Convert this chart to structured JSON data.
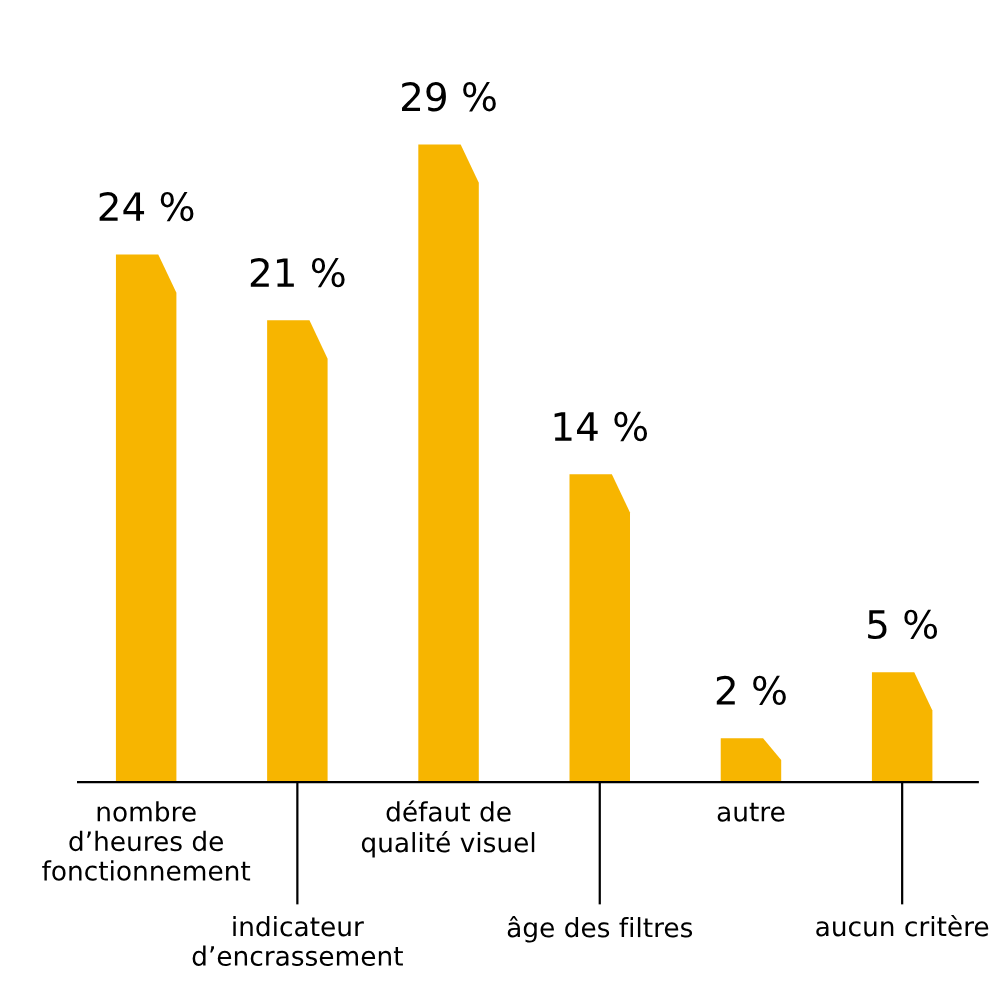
{
  "chart_data": {
    "type": "bar",
    "categories": [
      "nombre\nd’heures de\nfonctionnement",
      "indicateur\nd’encrassement",
      "défaut de\nqualité visuel",
      "âge des filtres",
      "autre",
      "aucun critère"
    ],
    "values": [
      24,
      21,
      29,
      14,
      2,
      5
    ],
    "value_labels": [
      "24 %",
      "21 %",
      "29 %",
      "14 %",
      "2 %",
      "5 %"
    ],
    "color": "#f7b500"
  }
}
